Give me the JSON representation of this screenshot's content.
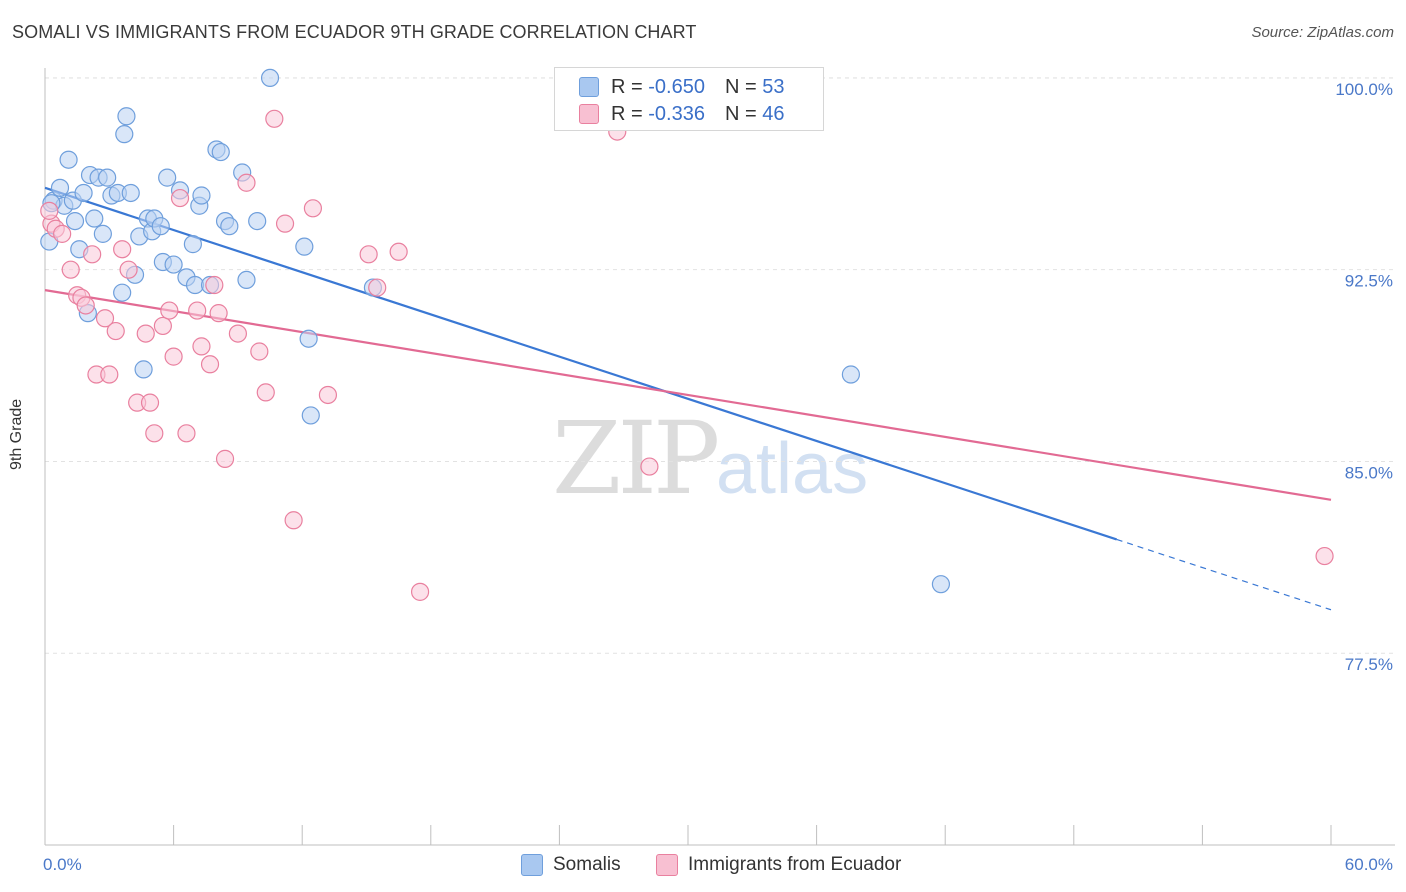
{
  "title": "SOMALI VS IMMIGRANTS FROM ECUADOR 9TH GRADE CORRELATION CHART",
  "source": "Source: ZipAtlas.com",
  "watermark": {
    "zip": "ZIP",
    "atlas": "atlas"
  },
  "legend": {
    "rows": [
      {
        "r_label": "R =",
        "r_value": "-0.650",
        "n_label": "N =",
        "n_value": "53",
        "color": "#a9c8f0",
        "border": "#6f9fdc"
      },
      {
        "r_label": "R =",
        "r_value": "-0.336",
        "n_label": "N =",
        "n_value": "46",
        "color": "#f8c0d2",
        "border": "#e9809f"
      }
    ]
  },
  "bottom_legend": {
    "somali": "Somalis",
    "ecuador": "Immigrants from Ecuador"
  },
  "chart_data": {
    "type": "scatter",
    "title": "SOMALI VS IMMIGRANTS FROM ECUADOR 9TH GRADE CORRELATION CHART",
    "xlabel": "",
    "ylabel": "9th Grade",
    "xlim": [
      0,
      60
    ],
    "ylim": [
      70.0,
      100.7
    ],
    "x_tick_labels": [
      "0.0%",
      "60.0%"
    ],
    "y_ticks": [
      77.5,
      85.0,
      92.5,
      100.0
    ],
    "y_tick_labels": [
      "77.5%",
      "85.0%",
      "92.5%",
      "100.0%"
    ],
    "series": [
      {
        "name": "Somalis",
        "color": "#6f9fdc",
        "fill": "#b9d2f3",
        "line_color": "#3a78d4",
        "trend": {
          "x_start": 0.0,
          "y_start": 95.7,
          "x_solid_end": 50.0,
          "x_end": 60.0,
          "y_end": 79.2
        },
        "points": [
          [
            0.2,
            93.6
          ],
          [
            0.4,
            95.2
          ],
          [
            0.7,
            95.7
          ],
          [
            0.9,
            95.0
          ],
          [
            1.1,
            96.8
          ],
          [
            1.3,
            95.2
          ],
          [
            1.4,
            94.4
          ],
          [
            1.6,
            93.3
          ],
          [
            1.8,
            95.5
          ],
          [
            2.0,
            90.8
          ],
          [
            2.1,
            96.2
          ],
          [
            2.3,
            94.5
          ],
          [
            2.5,
            96.1
          ],
          [
            2.7,
            93.9
          ],
          [
            2.9,
            96.1
          ],
          [
            3.1,
            95.4
          ],
          [
            3.4,
            95.5
          ],
          [
            3.6,
            91.6
          ],
          [
            3.7,
            97.8
          ],
          [
            3.8,
            98.5
          ],
          [
            4.0,
            95.5
          ],
          [
            4.2,
            92.3
          ],
          [
            4.4,
            93.8
          ],
          [
            4.6,
            88.6
          ],
          [
            4.8,
            94.5
          ],
          [
            5.0,
            94.0
          ],
          [
            5.1,
            94.5
          ],
          [
            5.4,
            94.2
          ],
          [
            5.5,
            92.8
          ],
          [
            5.7,
            96.1
          ],
          [
            6.0,
            92.7
          ],
          [
            6.3,
            95.6
          ],
          [
            6.6,
            92.2
          ],
          [
            6.9,
            93.5
          ],
          [
            7.0,
            91.9
          ],
          [
            7.2,
            95.0
          ],
          [
            7.3,
            95.4
          ],
          [
            7.7,
            91.9
          ],
          [
            8.0,
            97.2
          ],
          [
            8.2,
            97.1
          ],
          [
            8.4,
            94.4
          ],
          [
            8.6,
            94.2
          ],
          [
            9.2,
            96.3
          ],
          [
            9.4,
            92.1
          ],
          [
            9.9,
            94.4
          ],
          [
            10.5,
            100.0
          ],
          [
            12.1,
            93.4
          ],
          [
            12.3,
            89.8
          ],
          [
            12.4,
            86.8
          ],
          [
            15.3,
            91.8
          ],
          [
            37.6,
            88.4
          ],
          [
            41.8,
            80.2
          ],
          [
            0.3,
            95.1
          ]
        ]
      },
      {
        "name": "Immigrants from Ecuador",
        "color": "#e9809f",
        "fill": "#f9c8d8",
        "line_color": "#e26a93",
        "trend": {
          "x_start": 0.0,
          "y_start": 91.7,
          "x_solid_end": 60.0,
          "x_end": 60.0,
          "y_end": 83.5
        },
        "points": [
          [
            0.3,
            94.3
          ],
          [
            0.5,
            94.1
          ],
          [
            0.8,
            93.9
          ],
          [
            1.2,
            92.5
          ],
          [
            1.5,
            91.5
          ],
          [
            1.7,
            91.4
          ],
          [
            1.9,
            91.1
          ],
          [
            2.2,
            93.1
          ],
          [
            2.4,
            88.4
          ],
          [
            2.8,
            90.6
          ],
          [
            3.0,
            88.4
          ],
          [
            3.3,
            90.1
          ],
          [
            3.6,
            93.3
          ],
          [
            3.9,
            92.5
          ],
          [
            4.3,
            87.3
          ],
          [
            4.7,
            90.0
          ],
          [
            4.9,
            87.3
          ],
          [
            5.1,
            86.1
          ],
          [
            5.5,
            90.3
          ],
          [
            5.8,
            90.9
          ],
          [
            6.0,
            89.1
          ],
          [
            6.3,
            95.3
          ],
          [
            6.6,
            86.1
          ],
          [
            7.1,
            90.9
          ],
          [
            7.3,
            89.5
          ],
          [
            7.7,
            88.8
          ],
          [
            7.9,
            91.9
          ],
          [
            8.1,
            90.8
          ],
          [
            8.4,
            85.1
          ],
          [
            9.0,
            90.0
          ],
          [
            9.4,
            95.9
          ],
          [
            10.0,
            89.3
          ],
          [
            10.3,
            87.7
          ],
          [
            10.7,
            98.4
          ],
          [
            11.2,
            94.3
          ],
          [
            11.6,
            82.7
          ],
          [
            12.5,
            94.9
          ],
          [
            13.2,
            87.6
          ],
          [
            15.1,
            93.1
          ],
          [
            15.5,
            91.8
          ],
          [
            16.5,
            93.2
          ],
          [
            17.5,
            79.9
          ],
          [
            26.7,
            97.9
          ],
          [
            28.2,
            84.8
          ],
          [
            59.7,
            81.3
          ],
          [
            0.2,
            94.8
          ]
        ]
      }
    ]
  }
}
